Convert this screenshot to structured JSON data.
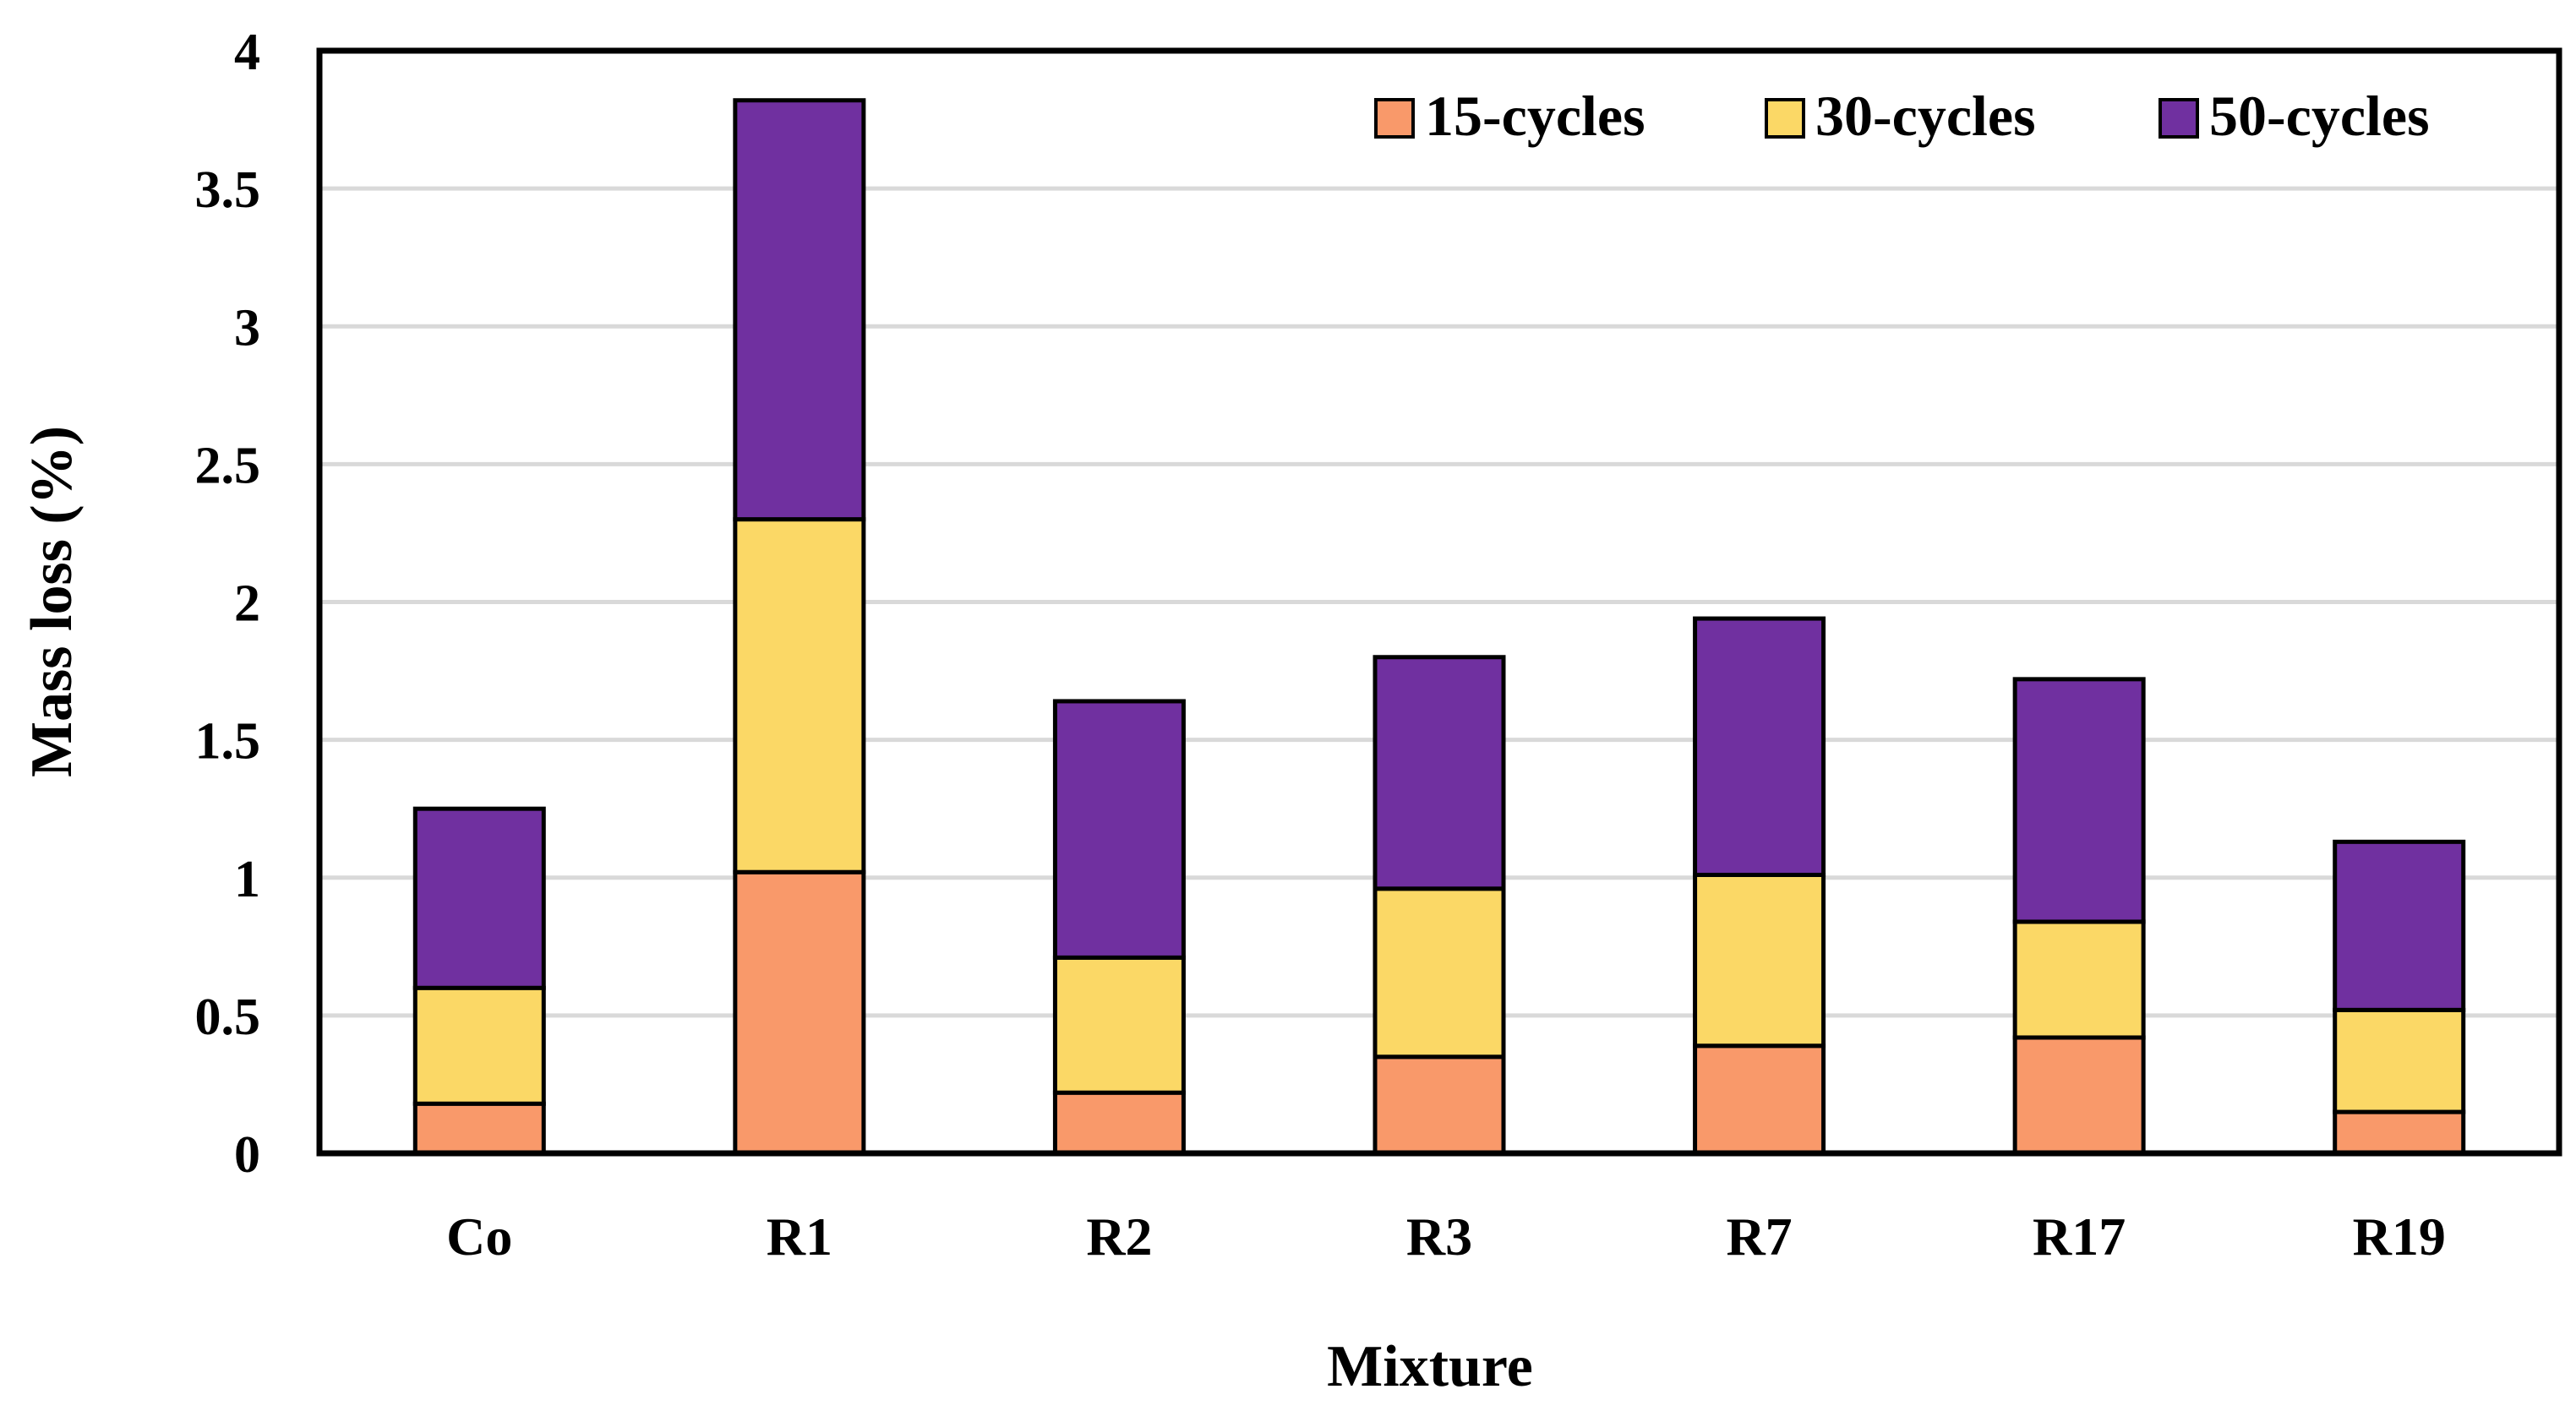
{
  "chart_data": {
    "type": "bar",
    "stacked": true,
    "title": "",
    "xlabel": "Mixture",
    "ylabel": "Mass loss (%)",
    "ylim": [
      0,
      4
    ],
    "ytick_step": 0.5,
    "yticks": [
      "0",
      "0.5",
      "1",
      "1.5",
      "2",
      "2.5",
      "3",
      "3.5",
      "4"
    ],
    "grid": true,
    "legend_position": "top-right",
    "categories": [
      "Co",
      "R1",
      "R2",
      "R3",
      "R7",
      "R17",
      "R19"
    ],
    "series": [
      {
        "name": "15-cycles",
        "color": "#F9996A",
        "values": [
          0.18,
          1.02,
          0.22,
          0.35,
          0.39,
          0.42,
          0.15
        ]
      },
      {
        "name": "30-cycles",
        "color": "#FBD866",
        "values": [
          0.42,
          1.28,
          0.49,
          0.61,
          0.62,
          0.42,
          0.37
        ]
      },
      {
        "name": "50-cycles",
        "color": "#7030A0",
        "values": [
          0.65,
          1.52,
          0.93,
          0.84,
          0.93,
          0.88,
          0.61
        ]
      }
    ]
  }
}
